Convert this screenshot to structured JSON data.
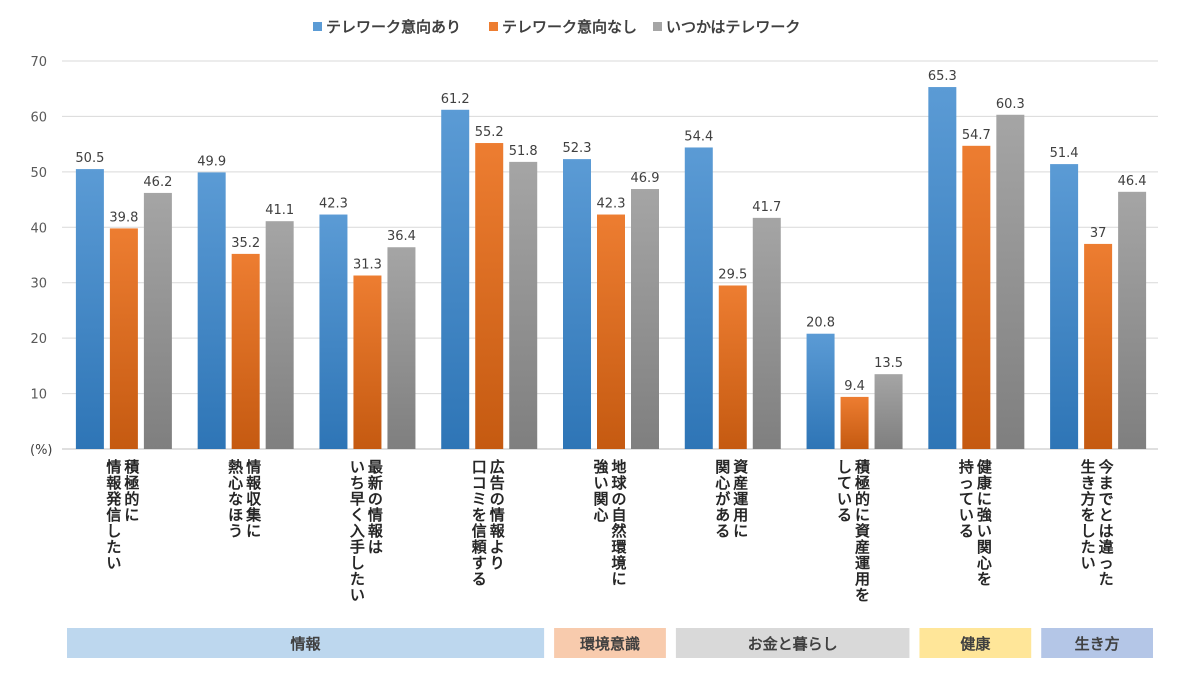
{
  "chart_data": {
    "type": "bar",
    "unit_label": "(%)",
    "ylim": [
      0,
      70
    ],
    "yticks": [
      0,
      10,
      20,
      30,
      40,
      50,
      60,
      70
    ],
    "grid": true,
    "legend_position": "top-center",
    "categories": [
      [
        "積極的に",
        "情報発信したい"
      ],
      [
        "情報収集に",
        "熱心なほう"
      ],
      [
        "最新の情報は",
        "いち早く入手したい"
      ],
      [
        "広告の情報より",
        "口コミを信頼する"
      ],
      [
        "地球の自然環境に",
        "強い関心"
      ],
      [
        "資産運用に",
        "関心がある"
      ],
      [
        "積極的に資産運用を",
        "している"
      ],
      [
        "健康に強い関心を",
        "持っている"
      ],
      [
        "今までとは違った",
        "生き方をしたい"
      ]
    ],
    "series": [
      {
        "name": "テレワーク意向あり",
        "color": "#5B9BD5",
        "values": [
          50.5,
          49.9,
          42.3,
          61.2,
          52.3,
          54.4,
          20.8,
          65.3,
          51.4
        ]
      },
      {
        "name": "テレワーク意向なし",
        "color": "#ED7D31",
        "values": [
          39.8,
          35.2,
          31.3,
          55.2,
          42.3,
          29.5,
          9.4,
          54.7,
          37
        ]
      },
      {
        "name": "いつかはテレワーク",
        "color": "#A5A5A5",
        "values": [
          46.2,
          41.1,
          36.4,
          51.8,
          46.9,
          41.7,
          13.5,
          60.3,
          46.4
        ]
      }
    ],
    "value_labels": [
      [
        "50.5",
        "49.9",
        "42.3",
        "61.2",
        "52.3",
        "54.4",
        "20.8",
        "65.3",
        "51.4"
      ],
      [
        "39.8",
        "35.2",
        "31.3",
        "55.2",
        "42.3",
        "29.5",
        "9.4",
        "54.7",
        "37"
      ],
      [
        "46.2",
        "41.1",
        "36.4",
        "51.8",
        "46.9",
        "41.7",
        "13.5",
        "60.3",
        "46.4"
      ]
    ],
    "groups": [
      {
        "label": "情報",
        "start": 0,
        "end": 3,
        "color": "#BDD7EE"
      },
      {
        "label": "環境意識",
        "start": 4,
        "end": 4,
        "color": "#F8CBAD"
      },
      {
        "label": "お金と暮らし",
        "start": 5,
        "end": 6,
        "color": "#D9D9D9"
      },
      {
        "label": "健康",
        "start": 7,
        "end": 7,
        "color": "#FFE699"
      },
      {
        "label": "生き方",
        "start": 8,
        "end": 8,
        "color": "#B4C6E7"
      }
    ]
  }
}
